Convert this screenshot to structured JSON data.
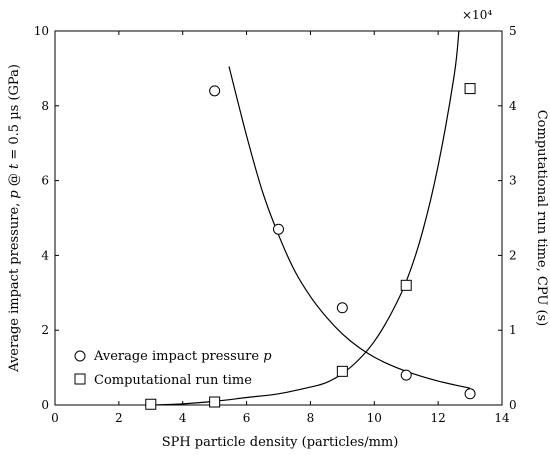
{
  "chart_data": {
    "type": "scatter",
    "xlabel": "SPH particle density (particles/mm)",
    "ylabel_left": "Average impact pressure, p @ t = 0.5 µs (GPa)",
    "ylabel_left_parts": {
      "pre": "Average impact pressure, ",
      "p": "p",
      "at": " @ ",
      "t": "t",
      "post": " = 0.5 µs (GPa)"
    },
    "ylabel_right": "Computational run time, CPU (s)",
    "right_multiplier": "×10⁴",
    "xlim": [
      0,
      14
    ],
    "ylim_left": [
      0,
      10
    ],
    "ylim_right": [
      0,
      50000
    ],
    "x_ticks": [
      "0",
      "2",
      "4",
      "6",
      "8",
      "10",
      "12",
      "14"
    ],
    "y_ticks_left": [
      "0",
      "2",
      "4",
      "6",
      "8",
      "10"
    ],
    "y_ticks_right": [
      "0",
      "1",
      "2",
      "3",
      "4",
      "5"
    ],
    "legend_position": "bottom-left",
    "series": [
      {
        "name": "Average impact pressure p",
        "name_plain": "Average impact pressure ",
        "name_italic": "p",
        "axis": "left",
        "marker": "circle",
        "x": [
          5,
          7,
          9,
          11,
          13
        ],
        "y": [
          8.4,
          4.7,
          2.6,
          0.8,
          0.3
        ]
      },
      {
        "name": "Computational run time",
        "axis": "right",
        "marker": "square",
        "x": [
          3,
          5,
          9,
          11,
          13
        ],
        "y": [
          100,
          400,
          4500,
          16000,
          42300
        ]
      }
    ],
    "fits": [
      {
        "axis": "left",
        "x": [
          5.45,
          6,
          6.5,
          7,
          7.5,
          8,
          8.5,
          9,
          9.5,
          10,
          10.5,
          11,
          11.5,
          12,
          12.5,
          13
        ],
        "y": [
          9.05,
          7.2,
          5.7,
          4.55,
          3.6,
          2.9,
          2.35,
          1.9,
          1.55,
          1.28,
          1.07,
          0.9,
          0.76,
          0.64,
          0.54,
          0.45
        ]
      },
      {
        "axis": "right",
        "x": [
          3,
          4,
          5,
          6,
          7,
          8,
          8.5,
          9,
          9.5,
          10,
          10.5,
          11,
          11.5,
          12,
          12.5,
          12.65
        ],
        "y": [
          0,
          150,
          500,
          1000,
          1500,
          2400,
          3000,
          4200,
          6000,
          8500,
          12000,
          16500,
          23000,
          32000,
          44000,
          50000
        ]
      }
    ]
  }
}
